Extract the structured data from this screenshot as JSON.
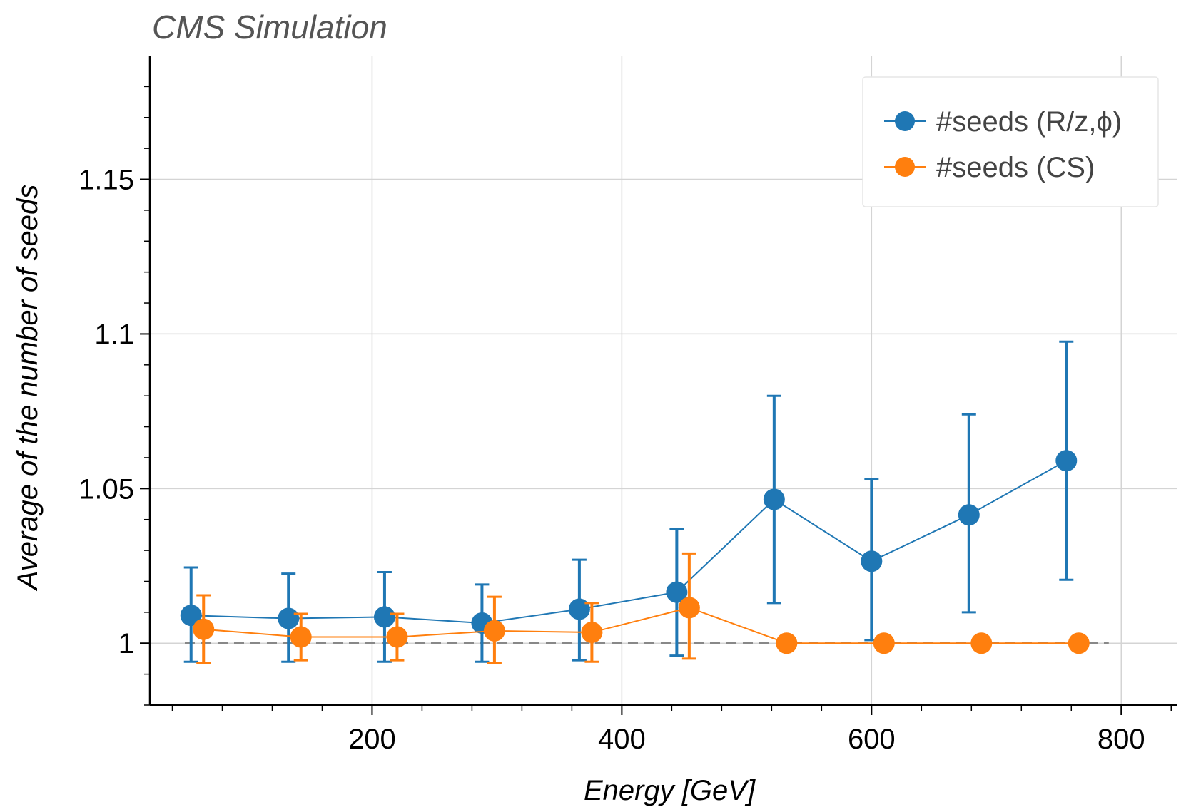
{
  "chart_data": {
    "type": "scatter",
    "title": "CMS Simulation",
    "xlabel": "Energy [GeV]",
    "ylabel": "Average of the number of seeds",
    "xlim": [
      22,
      845
    ],
    "ylim": [
      0.98,
      1.19
    ],
    "x_ticks": [
      200,
      400,
      600,
      800
    ],
    "x_tick_labels": [
      "200",
      "400",
      "600",
      "800"
    ],
    "y_ticks": [
      1.0,
      1.05,
      1.1,
      1.15
    ],
    "y_tick_labels": [
      "1",
      "1.05",
      "1.1",
      "1.15"
    ],
    "grid": true,
    "legend_position": "top-right",
    "reference_line": {
      "y": 1.0,
      "style": "dashed",
      "color": "#888888"
    },
    "series": [
      {
        "name": "#seeds (R/z,ϕ)",
        "color": "#1f77b4",
        "x": [
          55,
          133,
          210,
          288,
          366,
          444,
          522,
          600,
          678,
          756
        ],
        "y": [
          1.009,
          1.008,
          1.0085,
          1.0065,
          1.011,
          1.0165,
          1.0465,
          1.0265,
          1.0415,
          1.059
        ],
        "err_low": [
          0.015,
          0.014,
          0.0145,
          0.0125,
          0.0165,
          0.0205,
          0.0335,
          0.0255,
          0.0315,
          0.0385
        ],
        "err_high": [
          0.0155,
          0.0145,
          0.0145,
          0.0125,
          0.016,
          0.0205,
          0.0335,
          0.0265,
          0.0325,
          0.0385
        ]
      },
      {
        "name": "#seeds (CS)",
        "color": "#ff7f0e",
        "x": [
          65,
          143,
          220,
          298,
          376,
          454,
          532,
          610,
          688,
          766
        ],
        "y": [
          1.0045,
          1.002,
          1.002,
          1.004,
          1.0035,
          1.0115,
          1.0,
          1.0,
          1.0,
          1.0
        ],
        "err_low": [
          0.011,
          0.0075,
          0.0075,
          0.0105,
          0.0095,
          0.0165,
          0,
          0,
          0,
          0
        ],
        "err_high": [
          0.011,
          0.0075,
          0.0075,
          0.011,
          0.0095,
          0.0175,
          0,
          0,
          0,
          0
        ]
      }
    ]
  }
}
